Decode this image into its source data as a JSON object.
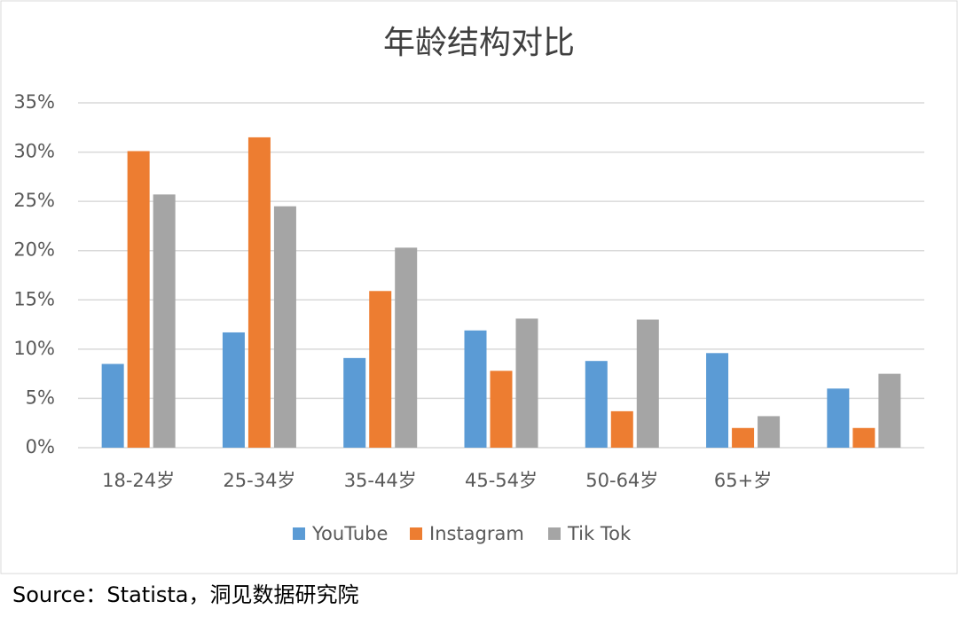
{
  "chart_data": {
    "type": "bar",
    "title": "年龄结构对比",
    "categories": [
      "18-24岁",
      "25-34岁",
      "35-44岁",
      "45-54岁",
      "50-64岁",
      "65+岁",
      null
    ],
    "series": [
      {
        "name": "YouTube",
        "color": "#5b9bd5",
        "values": [
          8.5,
          11.7,
          9.1,
          11.9,
          8.8,
          9.6,
          6.0
        ]
      },
      {
        "name": "Instagram",
        "color": "#ed7d31",
        "values": [
          30.1,
          31.5,
          15.9,
          7.8,
          3.7,
          2.0,
          2.0
        ]
      },
      {
        "name": "Tik Tok",
        "color": "#a5a5a5",
        "values": [
          25.7,
          24.5,
          20.3,
          13.1,
          13.0,
          3.2,
          7.5
        ]
      }
    ],
    "ylim": [
      0,
      35
    ],
    "yticks": [
      {
        "value": 0,
        "label": "0%"
      },
      {
        "value": 5,
        "label": "5%"
      },
      {
        "value": 10,
        "label": "10%"
      },
      {
        "value": 15,
        "label": "15%"
      },
      {
        "value": 20,
        "label": "20%"
      },
      {
        "value": 25,
        "label": "25%"
      },
      {
        "value": 30,
        "label": "30%"
      },
      {
        "value": 35,
        "label": "35%"
      }
    ],
    "grid": true,
    "legend": "bottom",
    "source": "Source：Statista，洞见数据研究院"
  }
}
